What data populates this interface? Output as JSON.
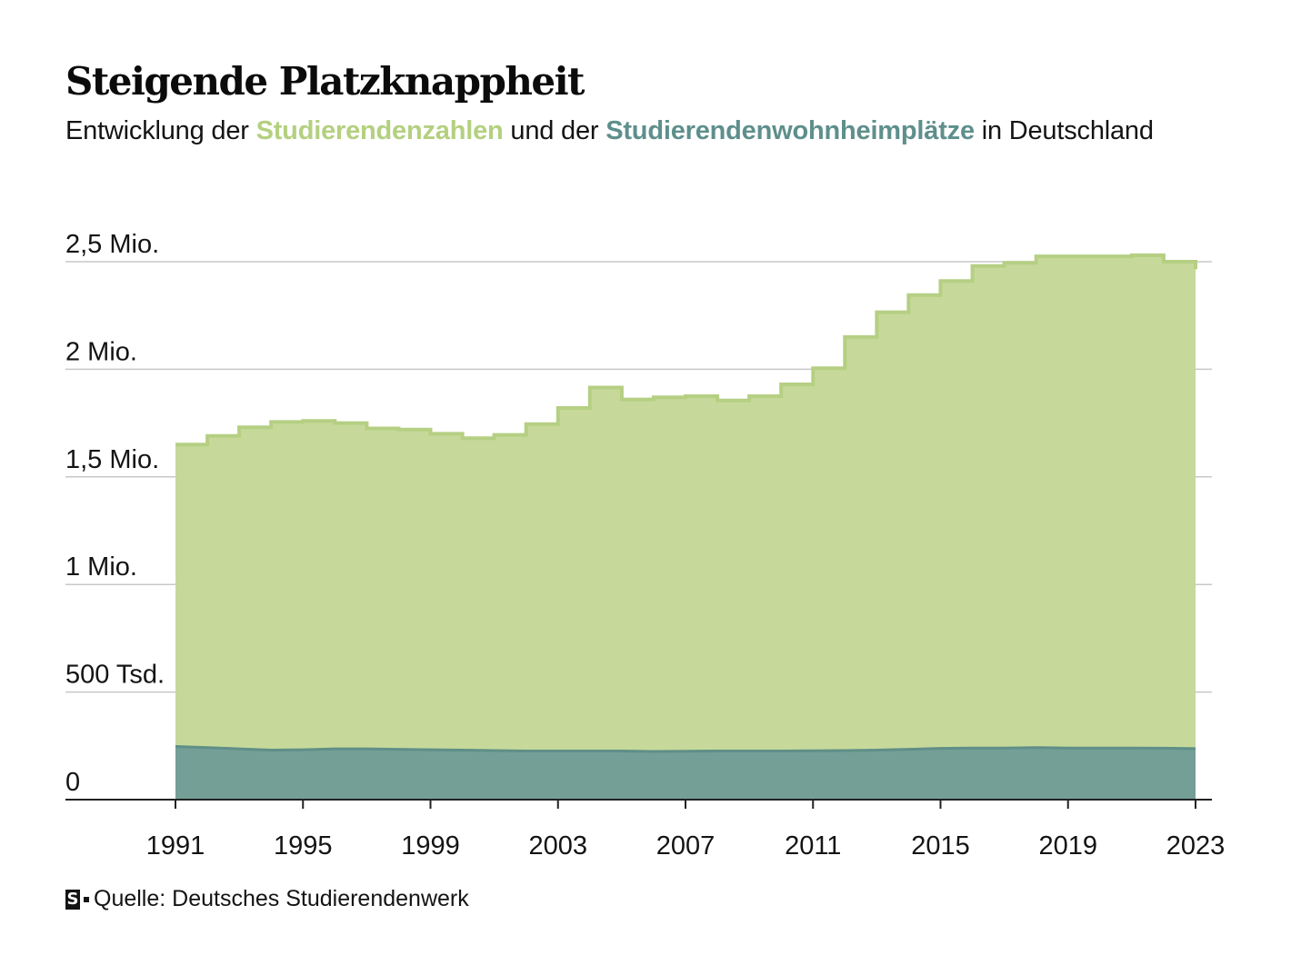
{
  "header": {
    "title": "Steigende Platzknappheit",
    "subtitle_pre": "Entwicklung der ",
    "subtitle_hl1": "Studierendenzahlen",
    "subtitle_mid": " und der ",
    "subtitle_hl2": "Studierendenwohnheimplätze",
    "subtitle_post": " in Deutschland"
  },
  "footer": {
    "logo_letter": "S",
    "source": "Quelle: Deutsches Studierendenwerk"
  },
  "colors": {
    "students_fill": "#c6d99a",
    "students_line": "#b5cf83",
    "dorm_fill": "#739f97",
    "dorm_line": "#5f8f87",
    "students_text": "#b4d07f",
    "dorm_text": "#5e8f8c",
    "grid": "#c8c8c8",
    "axis": "#222222"
  },
  "chart_data": {
    "type": "area",
    "ylim": [
      0,
      2500000
    ],
    "xlim": [
      1991,
      2023
    ],
    "yticks": [
      {
        "value": 0,
        "label": "0"
      },
      {
        "value": 500000,
        "label": "500 Tsd."
      },
      {
        "value": 1000000,
        "label": "1 Mio."
      },
      {
        "value": 1500000,
        "label": "1,5 Mio."
      },
      {
        "value": 2000000,
        "label": "2 Mio."
      },
      {
        "value": 2500000,
        "label": "2,5 Mio."
      }
    ],
    "xticks": [
      1991,
      1995,
      1999,
      2003,
      2007,
      2011,
      2015,
      2019,
      2023
    ],
    "grid": true,
    "series": [
      {
        "name": "Studierendenzahlen",
        "style": "step",
        "x": [
          1991,
          1992,
          1993,
          1994,
          1995,
          1996,
          1997,
          1998,
          1999,
          2000,
          2001,
          2002,
          2003,
          2004,
          2005,
          2006,
          2007,
          2008,
          2009,
          2010,
          2011,
          2012,
          2013,
          2014,
          2015,
          2016,
          2017,
          2018,
          2019,
          2020,
          2021,
          2022,
          2023
        ],
        "values": [
          1650000,
          1690000,
          1730000,
          1755000,
          1760000,
          1750000,
          1725000,
          1720000,
          1700000,
          1680000,
          1695000,
          1745000,
          1820000,
          1915000,
          1860000,
          1870000,
          1875000,
          1855000,
          1875000,
          1930000,
          2005000,
          2150000,
          2265000,
          2345000,
          2410000,
          2480000,
          2495000,
          2525000,
          2525000,
          2525000,
          2530000,
          2500000,
          2465000
        ]
      },
      {
        "name": "Studierendenwohnheimplätze",
        "style": "line",
        "x": [
          1991,
          1992,
          1993,
          1994,
          1995,
          1996,
          1997,
          1998,
          1999,
          2000,
          2001,
          2002,
          2003,
          2004,
          2005,
          2006,
          2007,
          2008,
          2009,
          2010,
          2011,
          2012,
          2013,
          2014,
          2015,
          2016,
          2017,
          2018,
          2019,
          2020,
          2021,
          2022,
          2023
        ],
        "values": [
          247000,
          242000,
          236000,
          230000,
          232000,
          236000,
          236000,
          234000,
          232000,
          230000,
          228000,
          226000,
          226000,
          226000,
          226000,
          224000,
          225000,
          226000,
          226000,
          226000,
          227000,
          228000,
          230000,
          234000,
          238000,
          240000,
          240000,
          242000,
          240000,
          240000,
          240000,
          239000,
          237000
        ]
      }
    ]
  }
}
